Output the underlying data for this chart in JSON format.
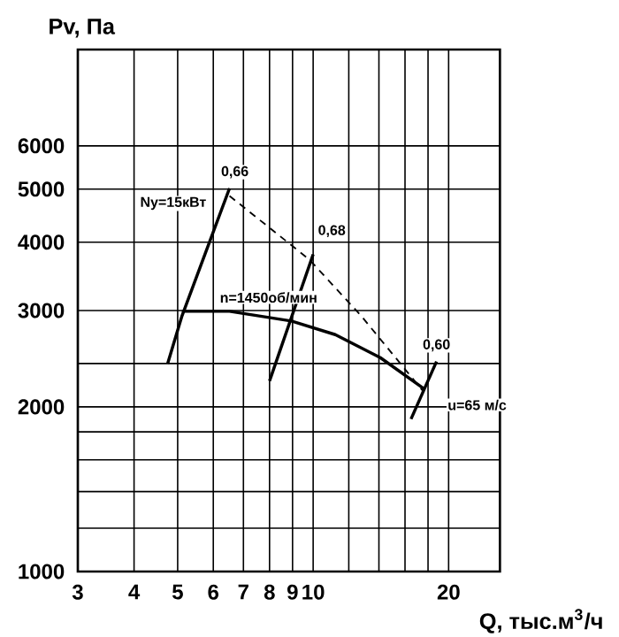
{
  "chart_data": {
    "type": "line",
    "xlabel": "Q, тыс.м$^{3}$/ч",
    "ylabel": "Pv, Па",
    "log": "xy",
    "grid": true,
    "marker": "none",
    "xlim": [
      3,
      26
    ],
    "ylim": [
      1000,
      9000
    ],
    "xticks": [
      3,
      4,
      5,
      6,
      7,
      8,
      9,
      10,
      {
        "value": 12,
        "label": null
      },
      {
        "value": 14,
        "label": null
      },
      {
        "value": 16,
        "label": null
      },
      {
        "value": 18,
        "label": null
      },
      20
    ],
    "yticks": [
      1000,
      {
        "value": 1200,
        "label": null
      },
      {
        "value": 1400,
        "label": null
      },
      {
        "value": 1600,
        "label": null
      },
      {
        "value": 1800,
        "label": null
      },
      2000,
      {
        "value": 2400,
        "label": null
      },
      3000,
      4000,
      5000,
      6000
    ],
    "series": [
      {
        "color": "#000000",
        "line_style": "solid",
        "x": [
          4.75,
          5.11,
          6.52
        ],
        "values": [
          2400,
          2930,
          5020
        ]
      },
      {
        "color": "#000000",
        "line_style": "dashed",
        "x": [
          6.52,
          9.8,
          12.8,
          17.6
        ],
        "values": [
          4860,
          3720,
          2930,
          2130
        ]
      },
      {
        "color": "#000000",
        "line_style": "solid",
        "x": [
          8.0,
          10.0
        ],
        "values": [
          2230,
          3800
        ]
      },
      {
        "color": "#000000",
        "line_style": "solid",
        "x": [
          16.5,
          18.8
        ],
        "values": [
          1900,
          2420
        ]
      },
      {
        "color": "#000000",
        "line_style": "solid",
        "x": [
          5.11,
          6.52,
          8.95,
          11.2,
          14.1,
          17.6
        ],
        "values": [
          2990,
          2990,
          2870,
          2710,
          2460,
          2160
        ]
      }
    ],
    "annotations": [
      "Ny=15кВт",
      {
        "text": "0,66",
        "x": 6.7,
        "y": 5370
      },
      {
        "text": "0,68",
        "x": 11.0,
        "y": 4190
      },
      "n=1450об/мин",
      {
        "text": "0,60",
        "x": 18.8,
        "y": 2590
      },
      "u=65 м/с"
    ]
  }
}
